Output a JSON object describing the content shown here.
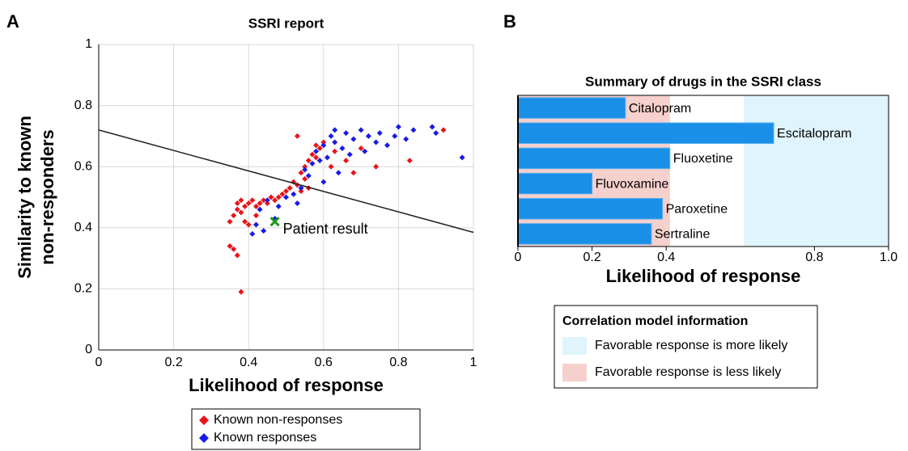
{
  "chart_data": [
    {
      "type": "scatter",
      "panel": "A",
      "title": "SSRI report",
      "xlabel": "Likelihood of response",
      "ylabel": [
        "Similarity to known",
        "non-responders"
      ],
      "xlim": [
        0,
        1
      ],
      "ylim": [
        0,
        1
      ],
      "xticks": [
        0,
        0.2,
        0.4,
        0.6,
        0.8,
        1
      ],
      "yticks": [
        0,
        0.2,
        0.4,
        0.6,
        0.8,
        1
      ],
      "grid": true,
      "series": [
        {
          "name": "Known non-responses",
          "color": "#e8141a",
          "x": [
            0.35,
            0.36,
            0.37,
            0.38,
            0.35,
            0.36,
            0.37,
            0.37,
            0.38,
            0.38,
            0.39,
            0.4,
            0.4,
            0.41,
            0.42,
            0.43,
            0.44,
            0.45,
            0.46,
            0.47,
            0.48,
            0.49,
            0.5,
            0.51,
            0.52,
            0.53,
            0.54,
            0.55,
            0.55,
            0.56,
            0.57,
            0.58,
            0.58,
            0.59,
            0.6,
            0.56,
            0.54,
            0.62,
            0.63,
            0.66,
            0.68,
            0.7,
            0.74,
            0.83,
            0.92,
            0.53,
            0.42,
            0.39
          ],
          "values": [
            0.34,
            0.33,
            0.31,
            0.19,
            0.42,
            0.44,
            0.46,
            0.48,
            0.45,
            0.49,
            0.47,
            0.41,
            0.48,
            0.49,
            0.47,
            0.48,
            0.49,
            0.48,
            0.5,
            0.49,
            0.5,
            0.51,
            0.52,
            0.53,
            0.55,
            0.54,
            0.58,
            0.6,
            0.56,
            0.62,
            0.64,
            0.63,
            0.67,
            0.66,
            0.68,
            0.53,
            0.52,
            0.6,
            0.65,
            0.62,
            0.58,
            0.66,
            0.6,
            0.62,
            0.72,
            0.7,
            0.44,
            0.42
          ]
        },
        {
          "name": "Known responses",
          "color": "#1a1ae6",
          "x": [
            0.41,
            0.42,
            0.44,
            0.43,
            0.45,
            0.48,
            0.5,
            0.52,
            0.54,
            0.55,
            0.56,
            0.57,
            0.58,
            0.59,
            0.6,
            0.61,
            0.62,
            0.63,
            0.65,
            0.66,
            0.67,
            0.68,
            0.7,
            0.71,
            0.72,
            0.74,
            0.75,
            0.77,
            0.79,
            0.8,
            0.82,
            0.84,
            0.89,
            0.9,
            0.97,
            0.6,
            0.64,
            0.53,
            0.47,
            0.63
          ],
          "values": [
            0.38,
            0.41,
            0.39,
            0.46,
            0.49,
            0.47,
            0.5,
            0.51,
            0.53,
            0.59,
            0.57,
            0.61,
            0.65,
            0.62,
            0.67,
            0.63,
            0.7,
            0.68,
            0.66,
            0.71,
            0.64,
            0.69,
            0.72,
            0.65,
            0.7,
            0.68,
            0.71,
            0.67,
            0.7,
            0.73,
            0.69,
            0.72,
            0.73,
            0.71,
            0.63,
            0.55,
            0.58,
            0.48,
            0.43,
            0.72
          ]
        }
      ],
      "trend_line": {
        "x": [
          0,
          1
        ],
        "y": [
          0.72,
          0.385
        ]
      },
      "patient": {
        "label": "Patient result",
        "x": 0.47,
        "y": 0.42,
        "color": "#1a9a1a"
      }
    },
    {
      "type": "bar",
      "panel": "B",
      "title": "Summary of drugs in the SSRI class",
      "xlabel": "Likelihood of response",
      "xlim": [
        0,
        1
      ],
      "xticks": [
        0,
        0.2,
        0.4,
        0.8,
        {
          "value": 1,
          "label": "1.0"
        }
      ],
      "categories": [
        "Citalopram",
        "Escitalopram",
        "Fluoxetine",
        "Fluvoxamine",
        "Paroxetine",
        "Sertraline"
      ],
      "values": [
        0.29,
        0.69,
        0.41,
        0.2,
        0.39,
        0.36
      ],
      "color": "#1a8fe8",
      "legend_title": "Correlation model information",
      "bands": [
        {
          "name": "Favorable response is more likely",
          "from": 0.61,
          "to": 1,
          "color": "#dff4fc"
        },
        {
          "name": "Favorable response is less likely",
          "from": 0,
          "to": 0.41,
          "color": "#f6d0cc"
        }
      ]
    }
  ]
}
